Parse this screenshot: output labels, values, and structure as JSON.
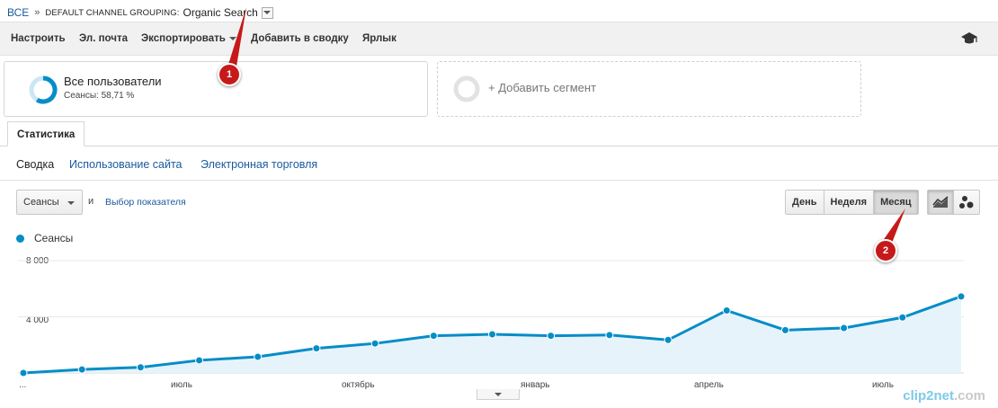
{
  "breadcrumb": {
    "all": "ВСЕ",
    "separator": "»",
    "dimension": "DEFAULT CHANNEL GROUPING:",
    "value": "Organic Search"
  },
  "toolbar": {
    "customize": "Настроить",
    "email": "Эл. почта",
    "export": "Экспортировать",
    "add_to_dashboard": "Добавить в сводку",
    "shortcut": "Ярлык",
    "academy_icon": "graduation-cap-icon"
  },
  "segments": {
    "active": {
      "title": "Все пользователи",
      "subtitle": "Сеансы: 58,71 %",
      "share_percent": 58.71
    },
    "add": "+ Добавить сегмент"
  },
  "tabs": {
    "active": "Статистика"
  },
  "subnav": [
    "Сводка",
    "Использование сайта",
    "Электронная торговля"
  ],
  "controls": {
    "metric": "Сеансы",
    "and": "и",
    "pick_metric": "Выбор показателя",
    "granularity": [
      "День",
      "Неделя",
      "Месяц"
    ],
    "selected_granularity": "Месяц"
  },
  "annotations": {
    "pin1": "1",
    "pin2": "2"
  },
  "watermark": {
    "brand": "clip2net",
    "domain": ".com"
  },
  "colors": {
    "line": "#058dc7",
    "fill": "#e6f3fa",
    "pin": "#c61a1a",
    "link": "#1a5a9c"
  },
  "chart_data": {
    "type": "area",
    "legend": [
      "Сеансы"
    ],
    "y_ticks": [
      "8 000",
      "4 000"
    ],
    "ylim": [
      0,
      8000
    ],
    "x_tick_labels": [
      "...",
      "июль",
      "октябрь",
      "январь",
      "апрель",
      "июль"
    ],
    "series": [
      {
        "name": "Сеансы",
        "values": [
          0,
          250,
          400,
          900,
          1150,
          1750,
          2100,
          2650,
          2750,
          2650,
          2700,
          2350,
          4450,
          3050,
          3200,
          3950,
          5450
        ]
      }
    ]
  }
}
